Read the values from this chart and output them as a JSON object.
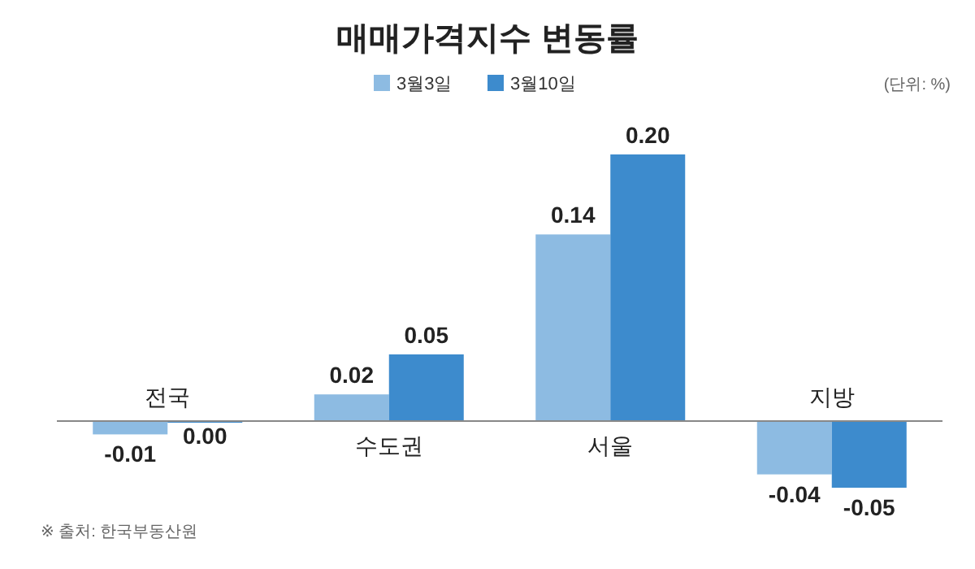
{
  "chart_data": {
    "type": "bar",
    "title": "매매가격지수 변동률",
    "categories": [
      "전국",
      "수도권",
      "서울",
      "지방"
    ],
    "series": [
      {
        "name": "3월3일",
        "color": "#8dbbe2",
        "values": [
          -0.01,
          0.02,
          0.14,
          -0.04
        ],
        "value_labels": [
          "-0.01",
          "0.02",
          "0.14",
          "-0.04"
        ]
      },
      {
        "name": "3월10일",
        "color": "#3d8bcd",
        "values": [
          0.0,
          0.05,
          0.2,
          -0.05
        ],
        "value_labels": [
          "0.00",
          "0.05",
          "0.20",
          "-0.05"
        ]
      }
    ],
    "legend": "top",
    "annotations": [
      "(단위: %)",
      "※ 출처: 한국부동산원"
    ]
  }
}
